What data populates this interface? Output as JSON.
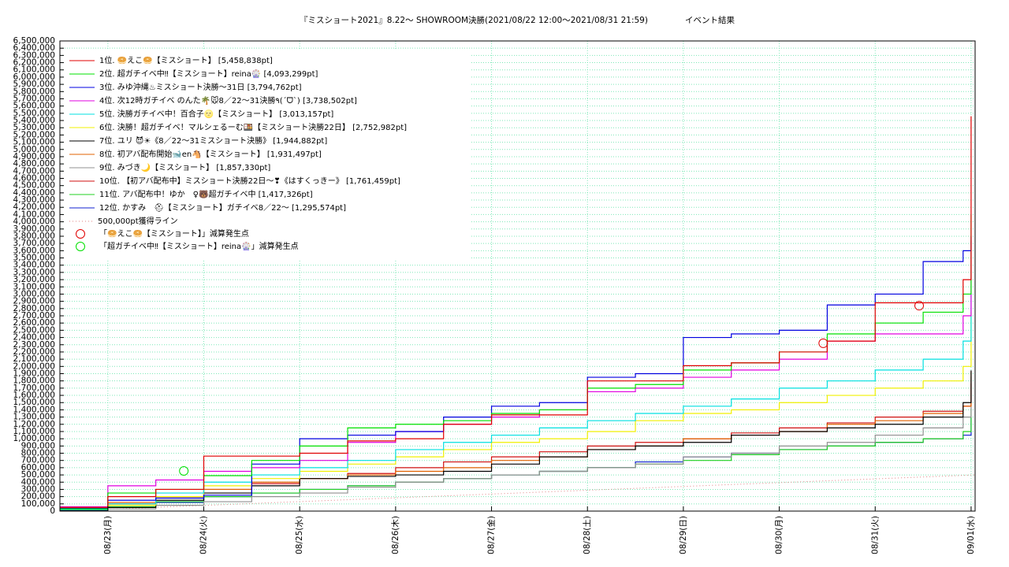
{
  "chart_data": {
    "type": "line",
    "step": true,
    "title": "『ミスショート2021』8.22～ SHOWROOM決勝(2021/08/22 12:00～2021/08/31 21:59)",
    "subtitle": "イベント結果",
    "xlim": [
      "08/22 12:00",
      "09/01 01:00"
    ],
    "xticks": [
      {
        "value": "08/23 00:00",
        "label": "08/23(月)"
      },
      {
        "value": "08/24 00:00",
        "label": "08/24(火)"
      },
      {
        "value": "08/25 00:00",
        "label": "08/25(水)"
      },
      {
        "value": "08/26 00:00",
        "label": "08/26(木)"
      },
      {
        "value": "08/27 00:00",
        "label": "08/27(金)"
      },
      {
        "value": "08/28 00:00",
        "label": "08/28(土)"
      },
      {
        "value": "08/29 00:00",
        "label": "08/29(日)"
      },
      {
        "value": "08/30 00:00",
        "label": "08/30(月)"
      },
      {
        "value": "08/31 00:00",
        "label": "08/31(火)"
      },
      {
        "value": "09/01 00:00",
        "label": "09/01(水)"
      }
    ],
    "ylim": [
      0,
      6500000
    ],
    "yticks": [
      0,
      {
        "value": 100000,
        "label": "100,000"
      },
      {
        "value": 200000,
        "label": "200,000"
      },
      {
        "value": 300000,
        "label": "300,000"
      },
      {
        "value": 400000,
        "label": "400,000"
      },
      {
        "value": 500000,
        "label": "500,000"
      },
      {
        "value": 600000,
        "label": "600,000"
      },
      {
        "value": 700000,
        "label": "700,000"
      },
      {
        "value": 800000,
        "label": "800,000"
      },
      {
        "value": 900000,
        "label": "900,000"
      },
      {
        "value": 1000000,
        "label": "1,000,000"
      },
      {
        "value": 1100000,
        "label": "1,100,000"
      },
      {
        "value": 1200000,
        "label": "1,200,000"
      },
      {
        "value": 1300000,
        "label": "1,300,000"
      },
      {
        "value": 1400000,
        "label": "1,400,000"
      },
      {
        "value": 1500000,
        "label": "1,500,000"
      },
      {
        "value": 1600000,
        "label": "1,600,000"
      },
      {
        "value": 1700000,
        "label": "1,700,000"
      },
      {
        "value": 1800000,
        "label": "1,800,000"
      },
      {
        "value": 1900000,
        "label": "1,900,000"
      },
      {
        "value": 2000000,
        "label": "2,000,000"
      },
      {
        "value": 2100000,
        "label": "2,100,000"
      },
      {
        "value": 2200000,
        "label": "2,200,000"
      },
      {
        "value": 2300000,
        "label": "2,300,000"
      },
      {
        "value": 2400000,
        "label": "2,400,000"
      },
      {
        "value": 2500000,
        "label": "2,500,000"
      },
      {
        "value": 2600000,
        "label": "2,600,000"
      },
      {
        "value": 2700000,
        "label": "2,700,000"
      },
      {
        "value": 2800000,
        "label": "2,800,000"
      },
      {
        "value": 2900000,
        "label": "2,900,000"
      },
      {
        "value": 3000000,
        "label": "3,000,000"
      },
      {
        "value": 3100000,
        "label": "3,100,000"
      },
      {
        "value": 3200000,
        "label": "3,200,000"
      },
      {
        "value": 3300000,
        "label": "3,300,000"
      },
      {
        "value": 3400000,
        "label": "3,400,000"
      },
      {
        "value": 3500000,
        "label": "3,500,000"
      },
      {
        "value": 3600000,
        "label": "3,600,000"
      },
      {
        "value": 3700000,
        "label": "3,700,000"
      },
      {
        "value": 3800000,
        "label": "3,800,000"
      },
      {
        "value": 3900000,
        "label": "3,900,000"
      },
      {
        "value": 4000000,
        "label": "4,000,000"
      },
      {
        "value": 4100000,
        "label": "4,100,000"
      },
      {
        "value": 4200000,
        "label": "4,200,000"
      },
      {
        "value": 4300000,
        "label": "4,300,000"
      },
      {
        "value": 4400000,
        "label": "4,400,000"
      },
      {
        "value": 4500000,
        "label": "4,500,000"
      },
      {
        "value": 4600000,
        "label": "4,600,000"
      },
      {
        "value": 4700000,
        "label": "4,700,000"
      },
      {
        "value": 4800000,
        "label": "4,800,000"
      },
      {
        "value": 4900000,
        "label": "4,900,000"
      },
      {
        "value": 5000000,
        "label": "5,000,000"
      },
      {
        "value": 5100000,
        "label": "5,100,000"
      },
      {
        "value": 5200000,
        "label": "5,200,000"
      },
      {
        "value": 5300000,
        "label": "5,300,000"
      },
      {
        "value": 5400000,
        "label": "5,400,000"
      },
      {
        "value": 5500000,
        "label": "5,500,000"
      },
      {
        "value": 5600000,
        "label": "5,600,000"
      },
      {
        "value": 5700000,
        "label": "5,700,000"
      },
      {
        "value": 5800000,
        "label": "5,800,000"
      },
      {
        "value": 5900000,
        "label": "5,900,000"
      },
      {
        "value": 6000000,
        "label": "6,000,000"
      },
      {
        "value": 6100000,
        "label": "6,100,000"
      },
      {
        "value": 6200000,
        "label": "6,200,000"
      },
      {
        "value": 6300000,
        "label": "6,300,000"
      },
      {
        "value": 6400000,
        "label": "6,400,000"
      },
      {
        "value": 6500000,
        "label": "6,500,000"
      }
    ],
    "grid": true,
    "grid_color": "#7fe8b8",
    "x": [
      "08/22 12:00",
      "08/23 00:00",
      "08/23 12:00",
      "08/24 00:00",
      "08/24 12:00",
      "08/25 00:00",
      "08/25 12:00",
      "08/26 00:00",
      "08/26 12:00",
      "08/27 00:00",
      "08/27 12:00",
      "08/28 00:00",
      "08/28 12:00",
      "08/29 00:00",
      "08/29 12:00",
      "08/30 00:00",
      "08/30 12:00",
      "08/31 00:00",
      "08/31 12:00",
      "08/31 22:00",
      "09/01 00:00"
    ],
    "series": [
      {
        "name": "1位. 🥯えこ🥯【ミスショート】 [5,458,838pt]",
        "color": "#e00000",
        "values": [
          50000,
          200000,
          300000,
          760000,
          760000,
          800000,
          970000,
          1000000,
          1200000,
          1330000,
          1330000,
          1800000,
          1800000,
          2010000,
          2050000,
          2200000,
          2350000,
          2880000,
          2880000,
          3200000,
          5458838
        ]
      },
      {
        "name": "2位. 超ガチイベ中‼【ミスショート】reina🎡 [4,093,299pt]",
        "color": "#00e000",
        "values": [
          30000,
          250000,
          300000,
          490000,
          700000,
          900000,
          1150000,
          1200000,
          1250000,
          1350000,
          1400000,
          1700000,
          1750000,
          1950000,
          2050000,
          2200000,
          2450000,
          2600000,
          2750000,
          3000000,
          4093299
        ]
      },
      {
        "name": "3位. みゆ沖縄♨ミスショート決勝〜31日 [3,794,762pt]",
        "color": "#0000e0",
        "values": [
          40000,
          150000,
          180000,
          220000,
          650000,
          1000000,
          1050000,
          1100000,
          1300000,
          1450000,
          1500000,
          1850000,
          1900000,
          2400000,
          2450000,
          2500000,
          2850000,
          3000000,
          3450000,
          3600000,
          3794762
        ]
      },
      {
        "name": "4位. 次12時ガチイベ のんた🌴🐭8／22〜31決勝٩(ˊᗜˋ) [3,738,502pt]",
        "color": "#e000e0",
        "values": [
          60000,
          350000,
          430000,
          550000,
          600000,
          700000,
          950000,
          1100000,
          1200000,
          1300000,
          1400000,
          1650000,
          1700000,
          1850000,
          1950000,
          2100000,
          2350000,
          2450000,
          2450000,
          2700000,
          3738502
        ]
      },
      {
        "name": "5位. 決勝ガチイベ中！百合子🌝【ミスショート】 [3,013,157pt]",
        "color": "#00e0e0",
        "values": [
          20000,
          100000,
          250000,
          400000,
          500000,
          600000,
          700000,
          850000,
          950000,
          1050000,
          1150000,
          1250000,
          1350000,
          1450000,
          1550000,
          1700000,
          1800000,
          1950000,
          2100000,
          2350000,
          3013157
        ]
      },
      {
        "name": "6位. 決勝！超ガチイベ！マルシェるーむ🍱【ミスショート決勝22日】 [2,752,982pt]",
        "color": "#f0f000",
        "values": [
          20000,
          80000,
          200000,
          350000,
          450000,
          550000,
          650000,
          750000,
          850000,
          950000,
          1000000,
          1100000,
          1250000,
          1350000,
          1400000,
          1500000,
          1600000,
          1700000,
          1800000,
          2000000,
          2752982
        ]
      },
      {
        "name": "7位. ユリ 😈☀《8／22〜31ミスショート決勝》 [1,944,882pt]",
        "color": "#000000",
        "values": [
          10000,
          50000,
          150000,
          250000,
          350000,
          450000,
          480000,
          500000,
          550000,
          650000,
          750000,
          850000,
          900000,
          950000,
          1050000,
          1100000,
          1150000,
          1200000,
          1300000,
          1500000,
          1944882
        ]
      },
      {
        "name": "8位. 初アバ配布開始🐋en🐴【ミスショート】 [1,931,497pt]",
        "color": "#e06000",
        "values": [
          30000,
          120000,
          200000,
          300000,
          400000,
          450000,
          500000,
          550000,
          600000,
          700000,
          750000,
          850000,
          900000,
          1000000,
          1050000,
          1100000,
          1200000,
          1250000,
          1350000,
          1450000,
          1931497
        ]
      },
      {
        "name": "9位. みづき🌙【ミスショート】 [1,857,330pt]",
        "color": "#909090",
        "values": [
          5000,
          30000,
          80000,
          130000,
          200000,
          250000,
          330000,
          400000,
          450000,
          500000,
          550000,
          600000,
          650000,
          750000,
          800000,
          900000,
          950000,
          1050000,
          1150000,
          1300000,
          1857330
        ]
      },
      {
        "name": "10位. 【初アバ配布中】ミスショート決勝22日〜❣《はすくっきー》 [1,761,459pt]",
        "color": "#d01010",
        "values": [
          20000,
          100000,
          200000,
          300000,
          380000,
          450000,
          520000,
          600000,
          680000,
          750000,
          820000,
          900000,
          950000,
          1000000,
          1080000,
          1150000,
          1220000,
          1300000,
          1380000,
          1450000,
          1761459
        ]
      },
      {
        "name": "11位. アバ配布中！ゆか　♀🐻超ガチイベ中 [1,417,326pt]",
        "color": "#20d020",
        "values": [
          10000,
          60000,
          130000,
          200000,
          250000,
          300000,
          350000,
          400000,
          450000,
          500000,
          550000,
          600000,
          650000,
          700000,
          780000,
          850000,
          900000,
          950000,
          1000000,
          1100000,
          1417326
        ]
      },
      {
        "name": "12位. かすみ　⛑【ミスショート】ガチイベ8／22〜 [1,295,574pt]",
        "color": "#1020d0",
        "values": [
          10000,
          50000,
          120000,
          200000,
          250000,
          300000,
          350000,
          400000,
          450000,
          500000,
          550000,
          600000,
          680000,
          750000,
          800000,
          850000,
          900000,
          950000,
          1000000,
          1050000,
          1295574
        ]
      }
    ],
    "target_line": {
      "name": "500,000pt獲得ライン",
      "color": "#e08080",
      "x": [
        "08/22 12:00",
        "09/01 01:00"
      ],
      "values": [
        0,
        500000
      ]
    },
    "markers": [
      {
        "name": "「🥯えこ🥯【ミスショート】」減算発生点",
        "color": "#e00000",
        "x": [
          "08/30 11:00",
          "08/31 11:00"
        ],
        "values": [
          2320000,
          2840000
        ]
      },
      {
        "name": "「超ガチイベ中‼【ミスショート】reina🎡」減算発生点",
        "color": "#00e000",
        "x": [
          "08/23 19:00"
        ],
        "values": [
          555000
        ]
      }
    ]
  }
}
